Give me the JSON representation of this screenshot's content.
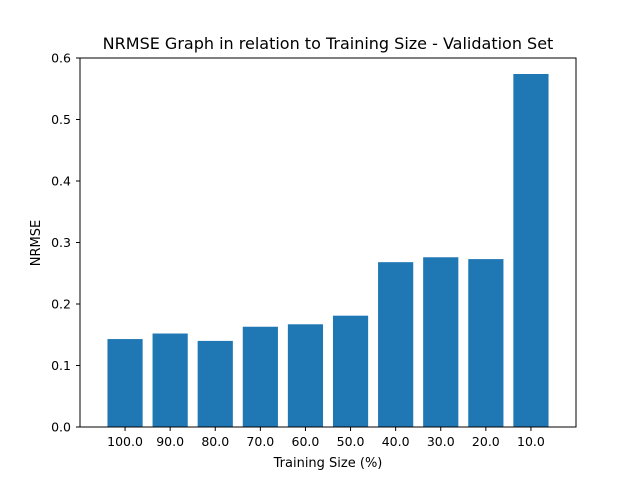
{
  "chart_data": {
    "type": "bar",
    "title": "NRMSE Graph in relation to Training Size - Validation Set",
    "xlabel": "Training Size (%)",
    "ylabel": "NRMSE",
    "categories": [
      "100.0",
      "90.0",
      "80.0",
      "70.0",
      "60.0",
      "50.0",
      "40.0",
      "30.0",
      "20.0",
      "10.0"
    ],
    "values": [
      0.143,
      0.152,
      0.14,
      0.163,
      0.167,
      0.181,
      0.268,
      0.276,
      0.273,
      0.574
    ],
    "ylim": [
      0,
      0.6
    ],
    "yticks": [
      "0.0",
      "0.1",
      "0.2",
      "0.3",
      "0.4",
      "0.5",
      "0.6"
    ],
    "grid": false,
    "legend": "none",
    "colors": {
      "bar": "#1f77b4",
      "axis": "#000000"
    }
  }
}
